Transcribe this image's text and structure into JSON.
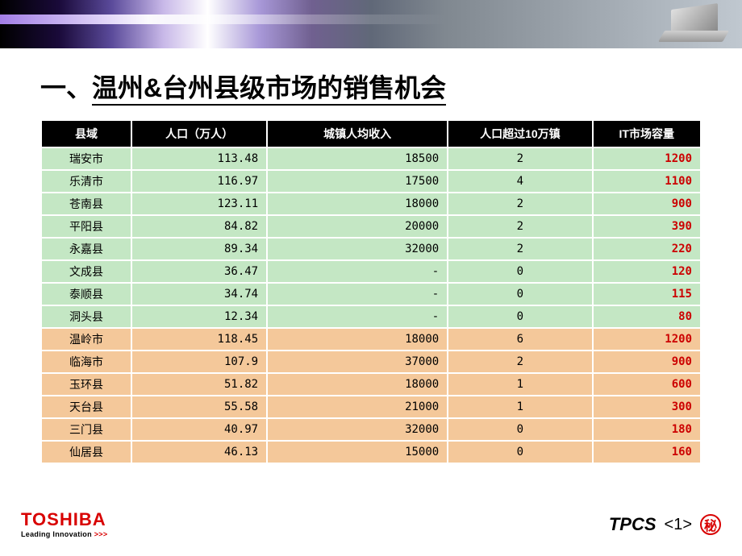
{
  "title_prefix": "一、",
  "title_text": "温州&台州县级市场的销售机会",
  "table": {
    "columns": [
      "县域",
      "人口（万人）",
      "城镇人均收入",
      "人口超过10万镇",
      "IT市场容量"
    ],
    "rows": [
      {
        "group": "green",
        "county": "瑞安市",
        "pop": "113.48",
        "income": "18500",
        "towns": "2",
        "capacity": "1200"
      },
      {
        "group": "green",
        "county": "乐清市",
        "pop": "116.97",
        "income": "17500",
        "towns": "4",
        "capacity": "1100"
      },
      {
        "group": "green",
        "county": "苍南县",
        "pop": "123.11",
        "income": "18000",
        "towns": "2",
        "capacity": "900"
      },
      {
        "group": "green",
        "county": "平阳县",
        "pop": "84.82",
        "income": "20000",
        "towns": "2",
        "capacity": "390"
      },
      {
        "group": "green",
        "county": "永嘉县",
        "pop": "89.34",
        "income": "32000",
        "towns": "2",
        "capacity": "220"
      },
      {
        "group": "green",
        "county": "文成县",
        "pop": "36.47",
        "income": "-",
        "towns": "0",
        "capacity": "120"
      },
      {
        "group": "green",
        "county": "泰顺县",
        "pop": "34.74",
        "income": "-",
        "towns": "0",
        "capacity": "115"
      },
      {
        "group": "green",
        "county": "洞头县",
        "pop": "12.34",
        "income": "-",
        "towns": "0",
        "capacity": "80"
      },
      {
        "group": "orange",
        "county": "温岭市",
        "pop": "118.45",
        "income": "18000",
        "towns": "6",
        "capacity": "1200"
      },
      {
        "group": "orange",
        "county": "临海市",
        "pop": "107.9",
        "income": "37000",
        "towns": "2",
        "capacity": "900"
      },
      {
        "group": "orange",
        "county": "玉环县",
        "pop": "51.82",
        "income": "18000",
        "towns": "1",
        "capacity": "600"
      },
      {
        "group": "orange",
        "county": "天台县",
        "pop": "55.58",
        "income": "21000",
        "towns": "1",
        "capacity": "300"
      },
      {
        "group": "orange",
        "county": "三门县",
        "pop": "40.97",
        "income": "32000",
        "towns": "0",
        "capacity": "180"
      },
      {
        "group": "orange",
        "county": "仙居县",
        "pop": "46.13",
        "income": "15000",
        "towns": "0",
        "capacity": "160"
      }
    ],
    "colors": {
      "header_bg": "#000000",
      "header_fg": "#ffffff",
      "green_bg": "#c4e7c4",
      "orange_bg": "#f4c89a",
      "capacity_fg": "#cc0000",
      "border": "#ffffff"
    }
  },
  "footer": {
    "brand": "TOSHIBA",
    "tagline": "Leading Innovation",
    "tag_chevrons": ">>>",
    "tpcs": "TPCS",
    "page": "<1>",
    "secret": "秘"
  }
}
